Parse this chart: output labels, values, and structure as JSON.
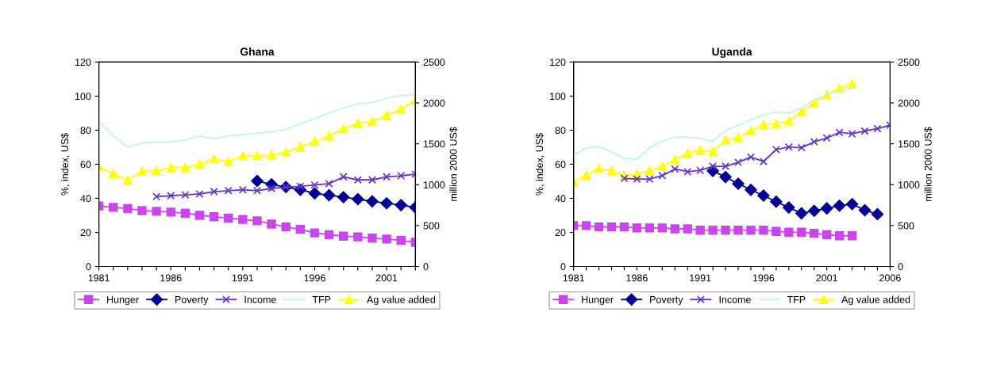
{
  "chart_data": [
    {
      "type": "line",
      "title": "Ghana",
      "ylabel": "%, index, US$",
      "y2label": "million 2000 US$",
      "categories": [
        "1981",
        null,
        null,
        null,
        null,
        "1986",
        null,
        null,
        null,
        null,
        "1991",
        null,
        null,
        null,
        null,
        "1996",
        null,
        null,
        null,
        null,
        "2001",
        null,
        null
      ],
      "ylim": [
        0,
        120
      ],
      "yticks": [
        0,
        20,
        40,
        60,
        80,
        100,
        120
      ],
      "y2lim": [
        0,
        2500
      ],
      "y2ticks": [
        0,
        500,
        1000,
        1500,
        2000,
        2500
      ],
      "grid": false,
      "legend": "bottom",
      "series": [
        {
          "name": "Hunger",
          "color": "#cc44ee",
          "marker": "square",
          "values": [
            35.5,
            34.7,
            34,
            32.8,
            32.4,
            31.9,
            31.3,
            30,
            29.2,
            28.4,
            27.6,
            26.8,
            24.9,
            23.2,
            21.8,
            19.7,
            18.6,
            17.8,
            17.4,
            16.6,
            16.1,
            15.3,
            14.2
          ]
        },
        {
          "name": "Poverty",
          "color": "#000099",
          "marker": "diamond",
          "values": [
            null,
            null,
            null,
            null,
            null,
            null,
            null,
            null,
            null,
            null,
            null,
            50.2,
            48.2,
            46.6,
            45,
            42.9,
            41.8,
            40.7,
            39.5,
            38.2,
            37.1,
            36,
            34.7
          ]
        },
        {
          "name": "Income",
          "color": "#6633cc",
          "marker": "cross",
          "values": [
            null,
            null,
            null,
            null,
            41,
            41.5,
            42,
            42.6,
            43.9,
            44.5,
            45,
            44.5,
            45.8,
            46.6,
            47,
            47.8,
            48.6,
            52.6,
            50.8,
            50.8,
            52.6,
            53.2,
            54.2
          ]
        },
        {
          "name": "TFP",
          "color": "#bff5f0",
          "marker": "none",
          "values": [
            85.3,
            76.6,
            70.3,
            72.6,
            73,
            73,
            74.2,
            76.6,
            75,
            76.6,
            77.4,
            78.2,
            79,
            80.5,
            83.7,
            86.8,
            90,
            93.2,
            95.5,
            96.3,
            98.7,
            100.3,
            101
          ]
        },
        {
          "name": "Ag value added",
          "color": "#ffff00",
          "marker": "triangle",
          "axis": "y2",
          "values": [
            1217,
            1135,
            1053,
            1168,
            1168,
            1211,
            1211,
            1250,
            1316,
            1283,
            1355,
            1355,
            1365,
            1398,
            1464,
            1530,
            1595,
            1684,
            1750,
            1776,
            1849,
            1924,
            2033
          ]
        }
      ]
    },
    {
      "type": "line",
      "title": "Uganda",
      "ylabel": "%, index, US$",
      "y2label": "million 2000 US$",
      "categories": [
        "1981",
        null,
        null,
        null,
        null,
        "1986",
        null,
        null,
        null,
        null,
        "1991",
        null,
        null,
        null,
        null,
        "1996",
        null,
        null,
        null,
        null,
        "2001",
        null,
        null,
        null,
        null,
        "2006"
      ],
      "ylim": [
        0,
        120
      ],
      "yticks": [
        0,
        20,
        40,
        60,
        80,
        100,
        120
      ],
      "y2lim": [
        0,
        2500
      ],
      "y2ticks": [
        0,
        500,
        1000,
        1500,
        2000,
        2500
      ],
      "grid": false,
      "legend": "bottom",
      "series": [
        {
          "name": "Hunger",
          "color": "#cc44ee",
          "marker": "square",
          "values": [
            24,
            24,
            23.2,
            23.2,
            23.2,
            22.6,
            22.6,
            22.6,
            22.1,
            22.1,
            21.3,
            21.3,
            21.3,
            21.3,
            21.3,
            21.3,
            20.6,
            20.1,
            20.1,
            19.5,
            18.6,
            18,
            18,
            null,
            null,
            null
          ]
        },
        {
          "name": "Poverty",
          "color": "#000099",
          "marker": "diamond",
          "values": [
            null,
            null,
            null,
            null,
            null,
            null,
            null,
            null,
            null,
            null,
            null,
            56.1,
            52.5,
            48.6,
            45,
            41.6,
            38,
            34.6,
            31.2,
            32.7,
            34.1,
            35.7,
            36.6,
            33,
            30.7,
            null
          ]
        },
        {
          "name": "Income",
          "color": "#6633cc",
          "marker": "cross",
          "values": [
            null,
            null,
            null,
            null,
            51.7,
            51.3,
            51.3,
            53.3,
            57.2,
            55.6,
            56.4,
            58.8,
            58.8,
            61.1,
            64.2,
            61.6,
            68.6,
            70.1,
            69.7,
            73.2,
            75.4,
            78.7,
            77.9,
            79.5,
            80.9,
            82.9
          ]
        },
        {
          "name": "TFP",
          "color": "#bff5f0",
          "marker": "none",
          "values": [
            65,
            69.7,
            70.4,
            67.3,
            63.4,
            63,
            69.7,
            73.6,
            75.9,
            75.9,
            75.1,
            73.6,
            79.8,
            82.9,
            86,
            89.1,
            90.7,
            89.9,
            93,
            97.7,
            100.8,
            103.2,
            104.7,
            null,
            null,
            null
          ]
        },
        {
          "name": "Ag value added",
          "color": "#ffff00",
          "marker": "triangle",
          "axis": "y2",
          "values": [
            1029,
            1117,
            1201,
            1169,
            1110,
            1127,
            1175,
            1224,
            1305,
            1386,
            1425,
            1403,
            1549,
            1581,
            1662,
            1734,
            1744,
            1776,
            1896,
            2003,
            2101,
            2183,
            2237,
            null,
            null,
            null
          ]
        }
      ]
    }
  ]
}
